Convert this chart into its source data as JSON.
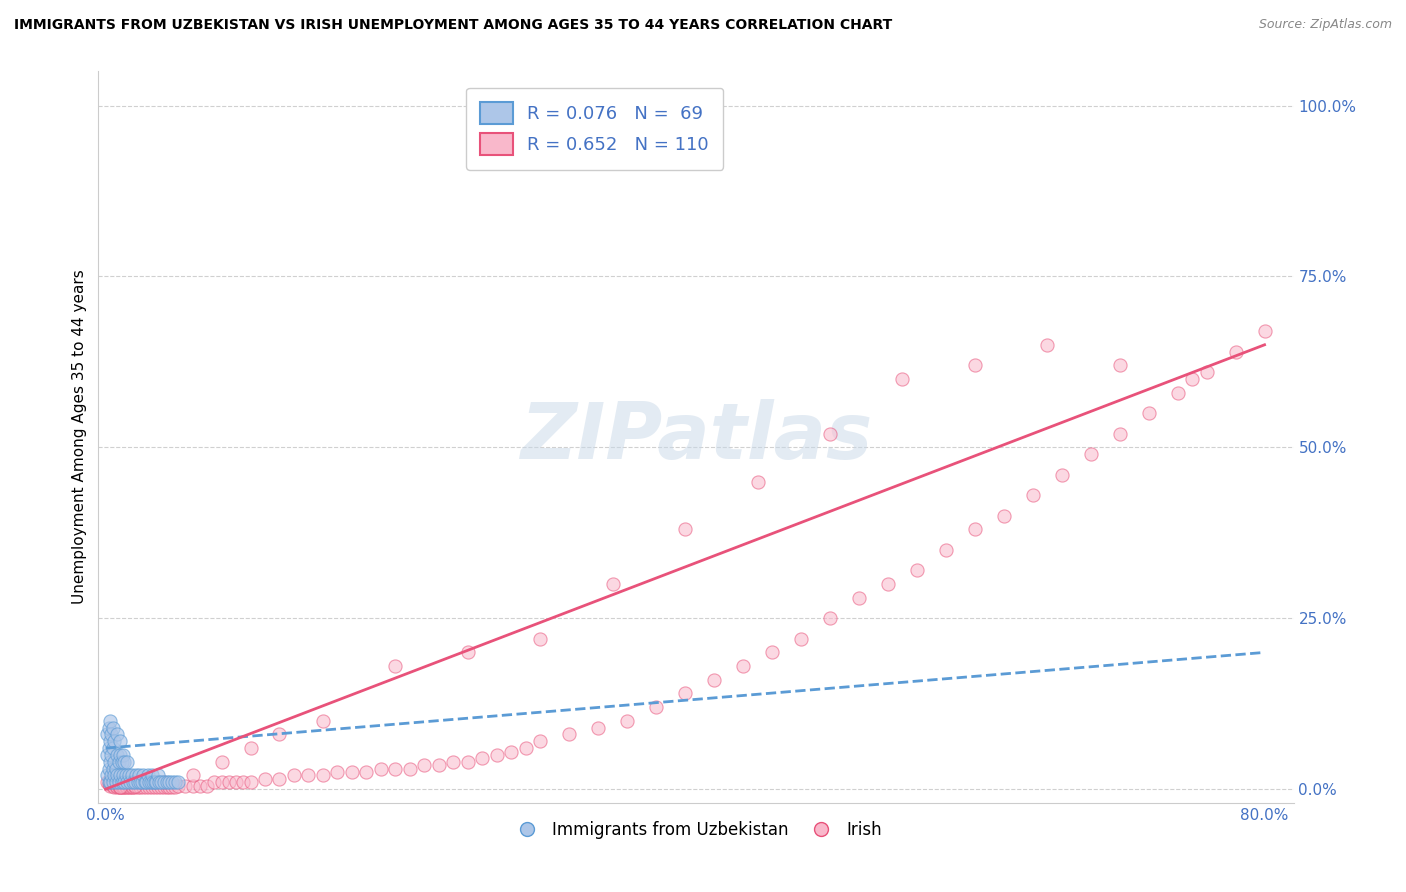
{
  "title": "IMMIGRANTS FROM UZBEKISTAN VS IRISH UNEMPLOYMENT AMONG AGES 35 TO 44 YEARS CORRELATION CHART",
  "source": "Source: ZipAtlas.com",
  "ylabel": "Unemployment Among Ages 35 to 44 years",
  "x_tick_labels": [
    "0.0%",
    "",
    "",
    "",
    "80.0%"
  ],
  "x_tick_vals": [
    0.0,
    0.2,
    0.4,
    0.6,
    0.8
  ],
  "y_tick_labels": [
    "0.0%",
    "25.0%",
    "50.0%",
    "75.0%",
    "100.0%"
  ],
  "y_tick_vals": [
    0.0,
    0.25,
    0.5,
    0.75,
    1.0
  ],
  "blue_color": "#adc6e8",
  "pink_color": "#f9b8cb",
  "blue_line_color": "#5b9bd5",
  "pink_line_color": "#e8527a",
  "legend_label_blue": "R = 0.076   N =  69",
  "legend_label_pink": "R = 0.652   N = 110",
  "bottom_legend_blue": "Immigrants from Uzbekistan",
  "bottom_legend_pink": "Irish",
  "watermark": "ZIPatlas",
  "axis_label_color": "#4472c4",
  "blue_scatter_x": [
    0.001,
    0.001,
    0.001,
    0.002,
    0.002,
    0.002,
    0.002,
    0.003,
    0.003,
    0.003,
    0.003,
    0.004,
    0.004,
    0.004,
    0.005,
    0.005,
    0.005,
    0.005,
    0.006,
    0.006,
    0.006,
    0.007,
    0.007,
    0.008,
    0.008,
    0.008,
    0.009,
    0.009,
    0.01,
    0.01,
    0.01,
    0.011,
    0.011,
    0.012,
    0.012,
    0.013,
    0.013,
    0.014,
    0.015,
    0.015,
    0.016,
    0.017,
    0.018,
    0.019,
    0.02,
    0.021,
    0.022,
    0.023,
    0.024,
    0.025,
    0.026,
    0.027,
    0.028,
    0.029,
    0.03,
    0.031,
    0.032,
    0.033,
    0.034,
    0.035,
    0.036,
    0.037,
    0.038,
    0.04,
    0.042,
    0.044,
    0.046,
    0.048,
    0.05
  ],
  "blue_scatter_y": [
    0.02,
    0.05,
    0.08,
    0.01,
    0.03,
    0.06,
    0.09,
    0.01,
    0.04,
    0.07,
    0.1,
    0.02,
    0.05,
    0.08,
    0.01,
    0.03,
    0.06,
    0.09,
    0.02,
    0.04,
    0.07,
    0.01,
    0.03,
    0.02,
    0.05,
    0.08,
    0.01,
    0.04,
    0.02,
    0.05,
    0.07,
    0.01,
    0.04,
    0.02,
    0.05,
    0.01,
    0.04,
    0.02,
    0.01,
    0.04,
    0.02,
    0.01,
    0.02,
    0.01,
    0.01,
    0.02,
    0.01,
    0.02,
    0.01,
    0.01,
    0.02,
    0.01,
    0.01,
    0.02,
    0.01,
    0.01,
    0.02,
    0.01,
    0.01,
    0.01,
    0.02,
    0.01,
    0.01,
    0.01,
    0.01,
    0.01,
    0.01,
    0.01,
    0.01
  ],
  "pink_scatter_x": [
    0.001,
    0.002,
    0.003,
    0.004,
    0.005,
    0.006,
    0.007,
    0.008,
    0.009,
    0.01,
    0.011,
    0.012,
    0.013,
    0.014,
    0.015,
    0.016,
    0.017,
    0.018,
    0.019,
    0.02,
    0.022,
    0.024,
    0.026,
    0.028,
    0.03,
    0.032,
    0.034,
    0.036,
    0.038,
    0.04,
    0.042,
    0.044,
    0.046,
    0.048,
    0.05,
    0.055,
    0.06,
    0.065,
    0.07,
    0.075,
    0.08,
    0.085,
    0.09,
    0.095,
    0.1,
    0.11,
    0.12,
    0.13,
    0.14,
    0.15,
    0.16,
    0.17,
    0.18,
    0.19,
    0.2,
    0.21,
    0.22,
    0.23,
    0.24,
    0.25,
    0.26,
    0.27,
    0.28,
    0.29,
    0.3,
    0.32,
    0.34,
    0.36,
    0.38,
    0.4,
    0.42,
    0.44,
    0.46,
    0.48,
    0.5,
    0.52,
    0.54,
    0.56,
    0.58,
    0.6,
    0.62,
    0.64,
    0.66,
    0.68,
    0.7,
    0.72,
    0.74,
    0.76,
    0.78,
    0.8,
    0.3,
    0.35,
    0.4,
    0.45,
    0.5,
    0.55,
    0.6,
    0.65,
    0.7,
    0.75,
    0.25,
    0.2,
    0.15,
    0.12,
    0.1,
    0.08,
    0.06,
    0.04,
    0.02,
    0.01
  ],
  "pink_scatter_y": [
    0.01,
    0.008,
    0.005,
    0.008,
    0.005,
    0.003,
    0.005,
    0.003,
    0.003,
    0.003,
    0.003,
    0.003,
    0.003,
    0.003,
    0.003,
    0.003,
    0.003,
    0.003,
    0.003,
    0.003,
    0.003,
    0.003,
    0.003,
    0.003,
    0.003,
    0.003,
    0.003,
    0.003,
    0.003,
    0.003,
    0.003,
    0.003,
    0.003,
    0.003,
    0.005,
    0.005,
    0.005,
    0.005,
    0.005,
    0.01,
    0.01,
    0.01,
    0.01,
    0.01,
    0.01,
    0.015,
    0.015,
    0.02,
    0.02,
    0.02,
    0.025,
    0.025,
    0.025,
    0.03,
    0.03,
    0.03,
    0.035,
    0.035,
    0.04,
    0.04,
    0.045,
    0.05,
    0.055,
    0.06,
    0.07,
    0.08,
    0.09,
    0.1,
    0.12,
    0.14,
    0.16,
    0.18,
    0.2,
    0.22,
    0.25,
    0.28,
    0.3,
    0.32,
    0.35,
    0.38,
    0.4,
    0.43,
    0.46,
    0.49,
    0.52,
    0.55,
    0.58,
    0.61,
    0.64,
    0.67,
    0.22,
    0.3,
    0.38,
    0.45,
    0.52,
    0.6,
    0.62,
    0.65,
    0.62,
    0.6,
    0.2,
    0.18,
    0.1,
    0.08,
    0.06,
    0.04,
    0.02,
    0.01,
    0.005,
    0.003
  ],
  "blue_trendline_x": [
    0.0,
    0.8
  ],
  "blue_trendline_y": [
    0.06,
    0.2
  ],
  "pink_trendline_x": [
    0.0,
    0.8
  ],
  "pink_trendline_y": [
    0.0,
    0.65
  ],
  "xlim": [
    -0.005,
    0.82
  ],
  "ylim": [
    -0.02,
    1.05
  ],
  "background_color": "#ffffff",
  "grid_color": "#d0d0d0"
}
